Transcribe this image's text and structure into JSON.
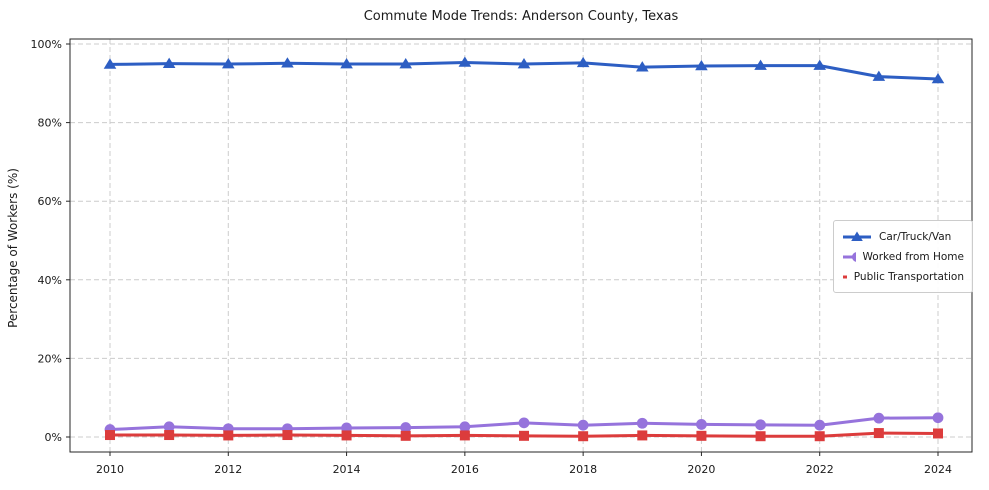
{
  "figure": {
    "title": "Commute Mode Trends: Anderson County, Texas"
  },
  "chart_data": {
    "type": "line",
    "title": "Commute Mode Trends: Anderson County, Texas",
    "xlabel": "",
    "ylabel": "Percentage of Workers (%)",
    "x": [
      2010,
      2011,
      2012,
      2013,
      2014,
      2015,
      2016,
      2017,
      2018,
      2019,
      2020,
      2021,
      2022,
      2023,
      2024
    ],
    "series": [
      {
        "name": "Car/Truck/Van",
        "color": "#2d5ec3",
        "marker": "triangle",
        "values": [
          94.8,
          95.0,
          94.9,
          95.1,
          94.9,
          94.9,
          95.3,
          94.9,
          95.2,
          94.1,
          94.4,
          94.5,
          94.5,
          91.7,
          91.1
        ]
      },
      {
        "name": "Worked from Home",
        "color": "#9673dc",
        "marker": "circle",
        "values": [
          1.9,
          2.6,
          2.1,
          2.1,
          2.3,
          2.4,
          2.6,
          3.6,
          3.0,
          3.5,
          3.2,
          3.1,
          3.0,
          4.8,
          4.9
        ]
      },
      {
        "name": "Public Transportation",
        "color": "#dc3c3c",
        "marker": "square",
        "values": [
          0.5,
          0.5,
          0.4,
          0.5,
          0.4,
          0.3,
          0.4,
          0.3,
          0.2,
          0.4,
          0.3,
          0.2,
          0.2,
          1.0,
          0.9
        ]
      }
    ],
    "x_ticks": [
      2010,
      2012,
      2014,
      2016,
      2018,
      2020,
      2022,
      2024
    ],
    "x_tick_labels": [
      "2010",
      "2012",
      "2014",
      "2016",
      "2018",
      "2020",
      "2022",
      "2024"
    ],
    "y_ticks": [
      0,
      20,
      40,
      60,
      80,
      100
    ],
    "y_tick_labels": [
      "0%",
      "20%",
      "40%",
      "60%",
      "80%",
      "100%"
    ],
    "ylim": [
      -3.8,
      101.3
    ],
    "xlim": [
      2009.3,
      2024.55
    ],
    "grid": true,
    "grid_style": "dashed",
    "legend_position": "center-right"
  },
  "colors": {
    "background": "#ffffff",
    "grid": "#cccccc",
    "spine": "#262626",
    "tick_text": "#1a1a1a",
    "legend_border": "#cccccc"
  }
}
